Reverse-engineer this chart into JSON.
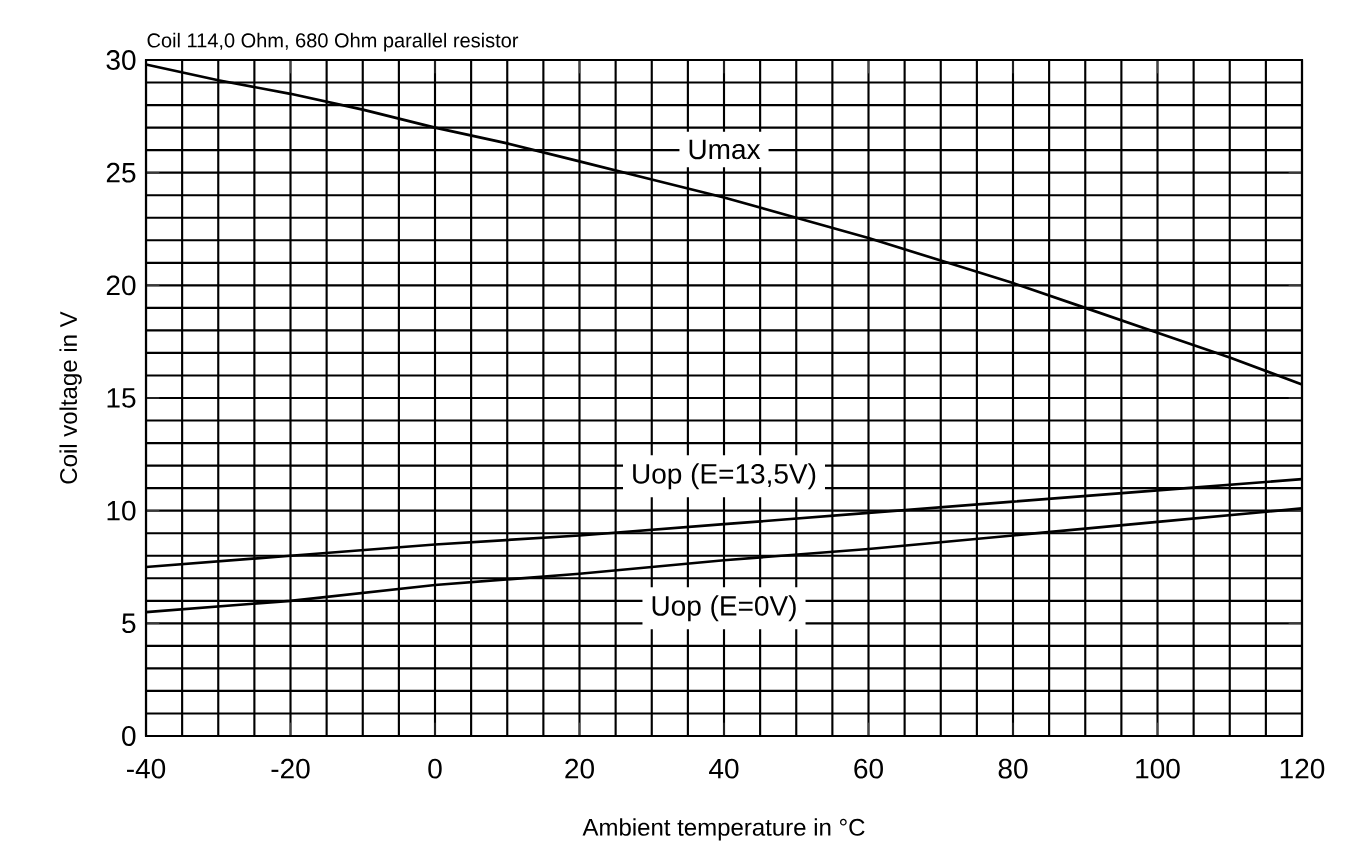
{
  "chart_data": {
    "type": "line",
    "title": "Coil 114,0 Ohm, 680 Ohm parallel resistor",
    "xlabel": "Ambient temperature in °C",
    "ylabel": "Coil voltage in V",
    "xlim": [
      -40,
      120
    ],
    "ylim": [
      0,
      30
    ],
    "xticks": [
      -40,
      -20,
      0,
      20,
      40,
      60,
      80,
      100,
      120
    ],
    "yticks": [
      0,
      5,
      10,
      15,
      20,
      25,
      30
    ],
    "grid": true,
    "series": [
      {
        "name": "Umax",
        "color": "#000000",
        "x": [
          -40,
          -30,
          -20,
          -10,
          0,
          10,
          20,
          30,
          40,
          50,
          60,
          70,
          80,
          90,
          100,
          110,
          120
        ],
        "values": [
          29.8,
          29.1,
          28.5,
          27.8,
          27.0,
          26.3,
          25.5,
          24.7,
          23.9,
          23.0,
          22.1,
          21.1,
          20.1,
          19.0,
          17.9,
          16.8,
          15.6
        ]
      },
      {
        "name": "Uop (E=13,5V)",
        "color": "#000000",
        "x": [
          -40,
          -20,
          0,
          20,
          40,
          60,
          80,
          100,
          120
        ],
        "values": [
          7.5,
          8.0,
          8.5,
          8.9,
          9.4,
          9.9,
          10.4,
          10.9,
          11.4
        ]
      },
      {
        "name": "Uop (E=0V)",
        "color": "#000000",
        "x": [
          -40,
          -20,
          0,
          20,
          40,
          60,
          80,
          100,
          120
        ],
        "values": [
          5.5,
          6.0,
          6.7,
          7.2,
          7.8,
          8.3,
          8.9,
          9.5,
          10.1
        ]
      }
    ]
  }
}
